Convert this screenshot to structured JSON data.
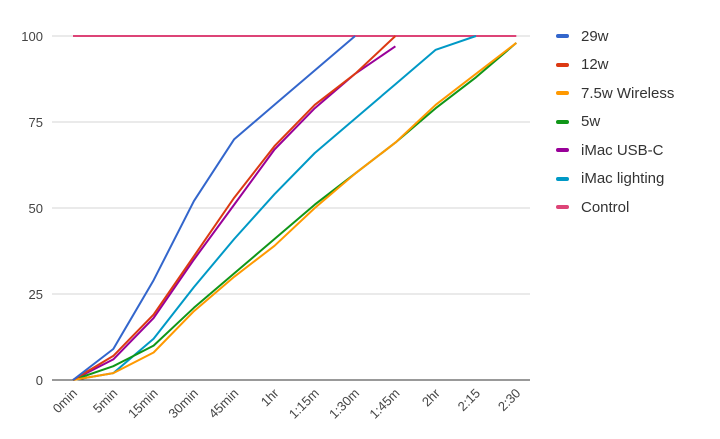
{
  "chart_data": {
    "type": "line",
    "categories": [
      "0min",
      "5min",
      "15min",
      "30min",
      "45min",
      "1hr",
      "1:15m",
      "1:30m",
      "1:45m",
      "2hr",
      "2:15",
      "2:30"
    ],
    "ylim": [
      0,
      100
    ],
    "yticks": [
      0,
      25,
      50,
      75,
      100
    ],
    "grid": true,
    "legend_position": "right",
    "series": [
      {
        "name": "29w",
        "color": "#3366cc",
        "values": [
          0,
          9,
          29,
          52,
          70,
          80,
          90,
          100,
          null,
          null,
          null,
          null
        ]
      },
      {
        "name": "12w",
        "color": "#dc3912",
        "values": [
          0,
          7,
          19,
          36,
          53,
          68,
          80,
          89,
          100,
          null,
          null,
          null
        ]
      },
      {
        "name": "7.5w Wireless",
        "color": "#ff9900",
        "values": [
          0,
          2,
          8,
          20,
          30,
          39,
          50,
          60,
          69,
          80,
          89,
          98
        ]
      },
      {
        "name": "5w",
        "color": "#109618",
        "values": [
          0,
          4,
          10,
          21,
          31,
          41,
          51,
          60,
          69,
          79,
          88,
          98
        ]
      },
      {
        "name": "iMac USB-C",
        "color": "#990099",
        "values": [
          0,
          6,
          18,
          35,
          51,
          67,
          79,
          89,
          97,
          null,
          null,
          null
        ]
      },
      {
        "name": "iMac lighting",
        "color": "#0099c6",
        "values": [
          0,
          2,
          12,
          27,
          41,
          54,
          66,
          76,
          86,
          96,
          100,
          null
        ]
      },
      {
        "name": "Control",
        "color": "#dd4477",
        "values": [
          100,
          100,
          100,
          100,
          100,
          100,
          100,
          100,
          100,
          100,
          100,
          100
        ]
      }
    ]
  }
}
